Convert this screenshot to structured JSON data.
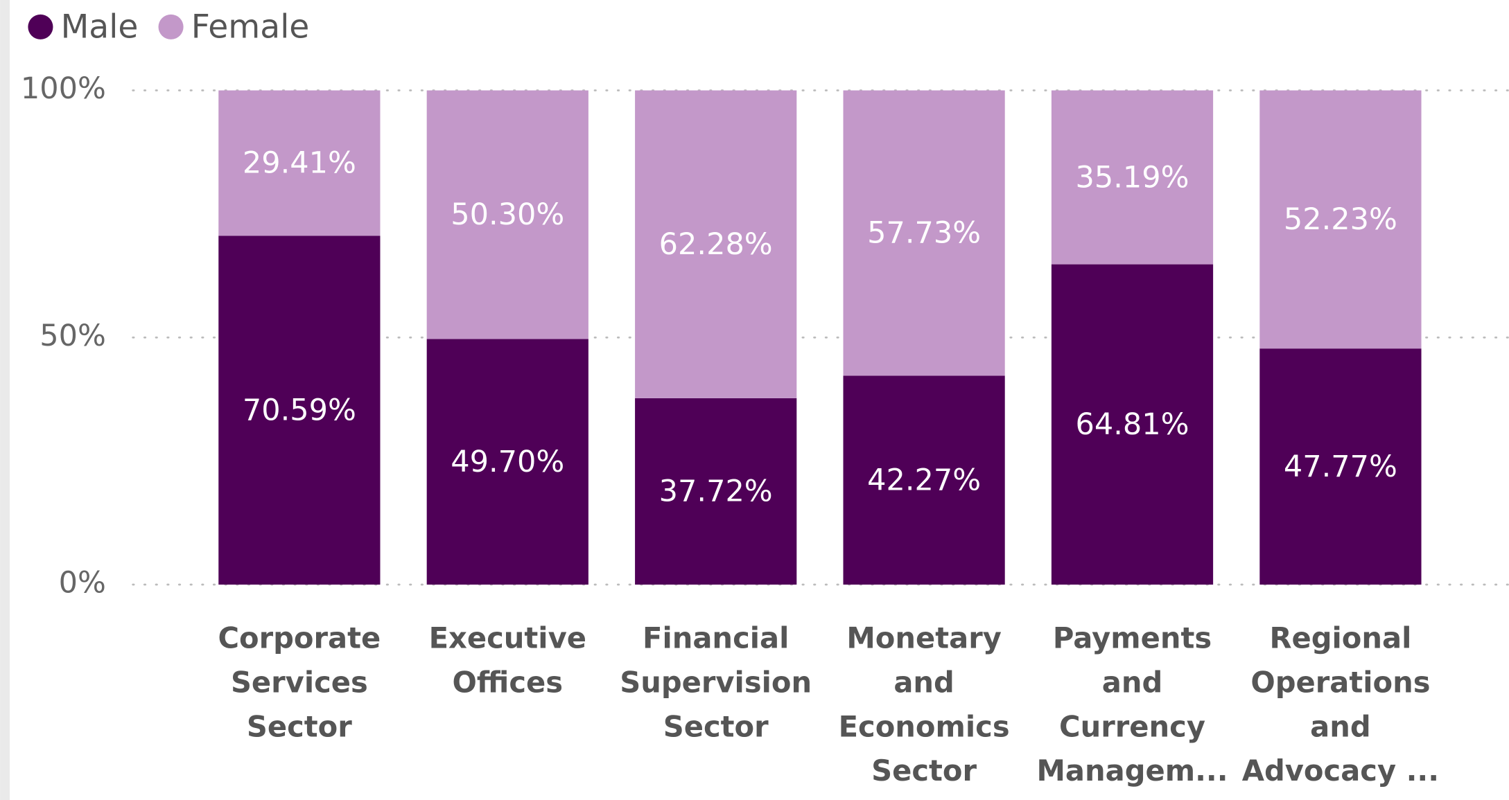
{
  "chart_data": {
    "type": "stacked_bar_100",
    "categories": [
      "Corporate Services Sector",
      "Executive Offices",
      "Financial Supervision Sector",
      "Monetary and Economics Sector",
      "Payments and Currency Managem...",
      "Regional Operations and Advocacy ..."
    ],
    "series": [
      {
        "name": "Male",
        "color": "#4f0057",
        "values": [
          70.59,
          49.7,
          37.72,
          42.27,
          64.81,
          47.77
        ],
        "value_labels": [
          "70.59%",
          "49.70%",
          "37.72%",
          "42.27%",
          "64.81%",
          "47.77%"
        ]
      },
      {
        "name": "Female",
        "color": "#c398c9",
        "values": [
          29.41,
          50.3,
          62.28,
          57.73,
          35.19,
          52.23
        ],
        "value_labels": [
          "29.41%",
          "50.30%",
          "62.28%",
          "57.73%",
          "35.19%",
          "52.23%"
        ]
      }
    ],
    "ylim": [
      0,
      100
    ],
    "yticks": [
      {
        "value": 0,
        "label": "0%"
      },
      {
        "value": 50,
        "label": "50%"
      },
      {
        "value": 100,
        "label": "100%"
      }
    ],
    "grid": true,
    "legend": "top-left"
  }
}
